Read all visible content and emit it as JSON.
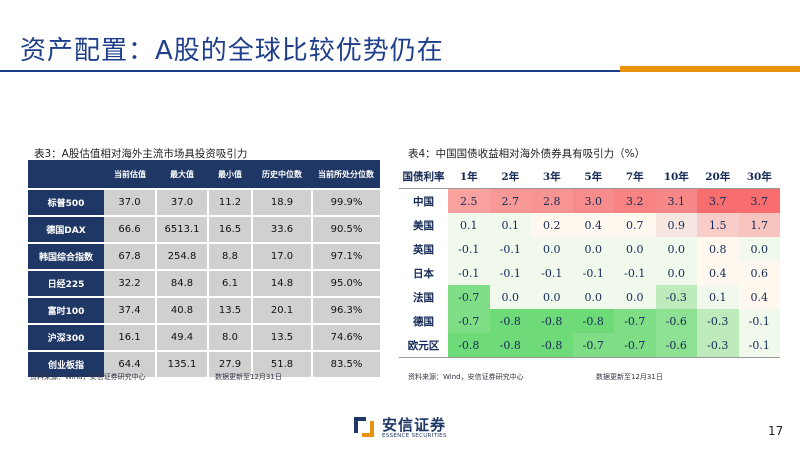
{
  "title": "资产配置：A股的全球比较优势仍在",
  "table3": {
    "caption": "表3：A股估值相对海外主流市场具投资吸引力",
    "headers": [
      "",
      "当前估值",
      "最大值",
      "最小值",
      "历史中位数",
      "当前所处分位数"
    ],
    "rows": [
      [
        "标普500",
        "37.0",
        "37.0",
        "11.2",
        "18.9",
        "99.9%"
      ],
      [
        "德国DAX",
        "66.6",
        "6513.1",
        "16.5",
        "33.6",
        "90.5%"
      ],
      [
        "韩国综合指数",
        "67.8",
        "254.8",
        "8.8",
        "17.0",
        "97.1%"
      ],
      [
        "日经225",
        "32.2",
        "84.8",
        "6.1",
        "14.8",
        "95.0%"
      ],
      [
        "富时100",
        "37.4",
        "40.8",
        "13.5",
        "20.1",
        "96.3%"
      ],
      [
        "沪深300",
        "16.1",
        "49.4",
        "8.0",
        "13.5",
        "74.6%"
      ],
      [
        "创业板指",
        "64.4",
        "135.1",
        "27.9",
        "51.8",
        "83.5%"
      ]
    ],
    "source": "资料来源：Wind，安信证券研究中心",
    "note": "数据更新至12月31日"
  },
  "table4": {
    "caption": "表4：中国国债收益相对海外债券具有吸引力（%）",
    "headers": [
      "国债利率",
      "1年",
      "2年",
      "3年",
      "5年",
      "7年",
      "10年",
      "20年",
      "30年"
    ],
    "rows": [
      [
        "中国",
        "2.5",
        "2.7",
        "2.8",
        "3.0",
        "3.2",
        "3.1",
        "3.7",
        "3.7"
      ],
      [
        "美国",
        "0.1",
        "0.1",
        "0.2",
        "0.4",
        "0.7",
        "0.9",
        "1.5",
        "1.7"
      ],
      [
        "英国",
        "-0.1",
        "-0.1",
        "0.0",
        "0.0",
        "0.0",
        "0.0",
        "0.8",
        "0.0"
      ],
      [
        "日本",
        "-0.1",
        "-0.1",
        "-0.1",
        "-0.1",
        "-0.1",
        "0.0",
        "0.4",
        "0.6"
      ],
      [
        "法国",
        "-0.7",
        "0.0",
        "0.0",
        "0.0",
        "0.0",
        "-0.3",
        "0.1",
        "0.4"
      ],
      [
        "德国",
        "-0.7",
        "-0.8",
        "-0.8",
        "-0.8",
        "-0.7",
        "-0.6",
        "-0.3",
        "-0.1"
      ],
      [
        "欧元区",
        "-0.8",
        "-0.8",
        "-0.8",
        "-0.7",
        "-0.7",
        "-0.6",
        "-0.3",
        "-0.1"
      ]
    ],
    "source": "资料来源：Wind，安信证券研究中心",
    "note": "数据更新至12月31日"
  },
  "logo": {
    "cn": "安信证券",
    "en": "ESSENCE SECURITIES"
  },
  "page_number": "17"
}
